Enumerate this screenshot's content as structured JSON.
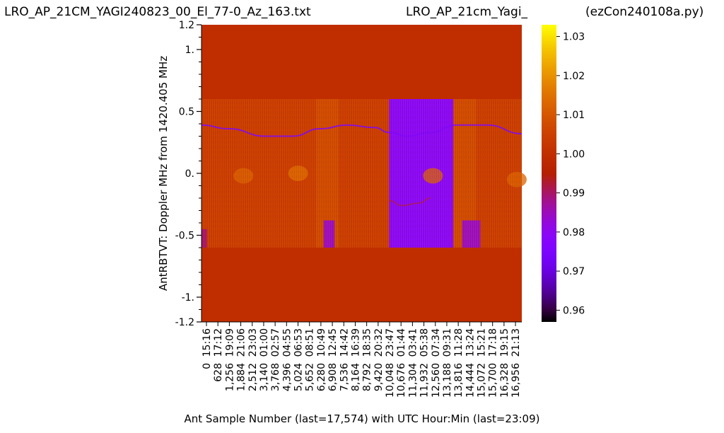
{
  "header": {
    "file_title": "LRO_AP_21CM_YAGI240823_00_El_77-0_Az_163.txt",
    "antenna_title": "LRO_AP_21cm_Yagi_",
    "program_title": "(ezCon240108a.py)"
  },
  "chart_data": {
    "type": "heatmap",
    "ylabel": "AntRBTVT:  Doppler MHz from 1420.405 MHz",
    "xlabel": "Ant Sample Number (last=17,574) with UTC Hour:Min (last=23:09)",
    "ylim": [
      -1.2,
      1.2
    ],
    "y_ticks": [
      1.2,
      1.0,
      0.5,
      0.0,
      -0.5,
      -1.0,
      -1.2
    ],
    "y_tick_labels": [
      "1.2",
      "1.",
      "0.5",
      "0.",
      "-0.5",
      "-1.",
      "-1.2"
    ],
    "x_range": [
      0,
      17574
    ],
    "x_ticks": [
      0,
      628,
      1256,
      1884,
      2512,
      3140,
      3768,
      4396,
      5024,
      5652,
      6280,
      6908,
      7536,
      8164,
      8792,
      9420,
      10048,
      10676,
      11304,
      11932,
      12560,
      13188,
      13816,
      14444,
      15072,
      15700,
      16328,
      16956
    ],
    "x_tick_numbers": [
      "0",
      "628",
      "1,256",
      "1,884",
      "2,512",
      "3,140",
      "3,768",
      "4,396",
      "5,024",
      "5,652",
      "6,280",
      "6,908",
      "7,536",
      "8,164",
      "8,792",
      "9,420",
      "10,048",
      "10,676",
      "11,304",
      "11,932",
      "12,560",
      "13,188",
      "13,816",
      "14,444",
      "15,072",
      "15,700",
      "16,328",
      "16,956"
    ],
    "x_tick_times": [
      "15:16",
      "17:12",
      "19:09",
      "21:06",
      "23:03",
      "01:00",
      "02:57",
      "04:55",
      "06:53",
      "08:51",
      "10:49",
      "12:45",
      "14:42",
      "16:39",
      "18:35",
      "20:32",
      "23:47",
      "01:44",
      "03:41",
      "05:38",
      "07:34",
      "09:31",
      "11:28",
      "13:24",
      "15:21",
      "17:18",
      "19:15",
      "21:13"
    ],
    "data_y_range": [
      -0.6,
      0.6
    ],
    "fill_value": 1.0,
    "colormap": "gnuplot",
    "colorbar": {
      "range": [
        0.957,
        1.033
      ],
      "ticks": [
        0.96,
        0.97,
        0.98,
        0.99,
        1.0,
        1.01,
        1.02,
        1.03
      ],
      "tick_labels": [
        "0.96",
        "0.97",
        "0.98",
        "0.99",
        "1.00",
        "1.01",
        "1.02",
        "1.03"
      ]
    },
    "regions": [
      {
        "x": [
          0,
          6280
        ],
        "y": [
          -0.6,
          0.6
        ],
        "value": 1.004
      },
      {
        "x": [
          6280,
          7536
        ],
        "y": [
          -0.6,
          0.6
        ],
        "value": 1.007
      },
      {
        "x": [
          7536,
          10300
        ],
        "y": [
          -0.6,
          0.6
        ],
        "value": 1.004
      },
      {
        "x": [
          10300,
          13816
        ],
        "y": [
          -0.6,
          0.6
        ],
        "value": 0.979
      },
      {
        "x": [
          13816,
          15072
        ],
        "y": [
          -0.6,
          0.6
        ],
        "value": 1.007
      },
      {
        "x": [
          15072,
          17574
        ],
        "y": [
          -0.6,
          0.6
        ],
        "value": 1.004
      },
      {
        "x": [
          6700,
          7300
        ],
        "y": [
          -0.6,
          -0.38
        ],
        "value": 0.985
      },
      {
        "x": [
          14300,
          15300
        ],
        "y": [
          -0.6,
          -0.38
        ],
        "value": 0.985
      },
      {
        "x": [
          0,
          300
        ],
        "y": [
          -0.6,
          -0.45
        ],
        "value": 0.99
      }
    ],
    "hotspots": [
      {
        "x": 2300,
        "y": -0.02,
        "value": 1.012
      },
      {
        "x": 5300,
        "y": 0.0,
        "value": 1.014
      },
      {
        "x": 12700,
        "y": -0.02,
        "value": 1.012
      },
      {
        "x": 17300,
        "y": -0.05,
        "value": 1.012
      }
    ],
    "traces": [
      {
        "value": 0.975,
        "points": [
          [
            0,
            0.39
          ],
          [
            1500,
            0.36
          ],
          [
            3500,
            0.3
          ],
          [
            5000,
            0.3
          ],
          [
            6500,
            0.36
          ],
          [
            8000,
            0.39
          ],
          [
            9500,
            0.37
          ],
          [
            10300,
            0.33
          ],
          [
            11304,
            0.3
          ],
          [
            12560,
            0.33
          ],
          [
            14000,
            0.39
          ],
          [
            15700,
            0.39
          ],
          [
            17574,
            0.32
          ]
        ]
      },
      {
        "value": 0.99,
        "points": [
          [
            10300,
            -0.22
          ],
          [
            11000,
            -0.26
          ],
          [
            11932,
            -0.24
          ],
          [
            12560,
            -0.2
          ]
        ]
      }
    ]
  }
}
